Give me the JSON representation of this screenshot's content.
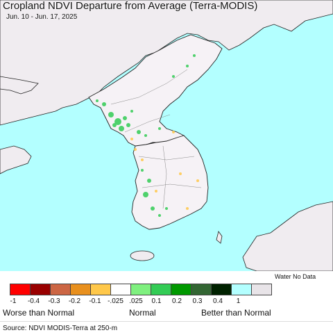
{
  "title": "Cropland NDVI Departure from Average (Terra-MODIS)",
  "subtitle": "Jun. 10 - Jun. 17, 2025",
  "legend": {
    "water_nodata_label": "Water No Data",
    "swatches": [
      {
        "color": "#ff0000",
        "name": "class--1"
      },
      {
        "color": "#990000",
        "name": "class--0.4"
      },
      {
        "color": "#cc6644",
        "name": "class--0.3"
      },
      {
        "color": "#e8901e",
        "name": "class--0.2"
      },
      {
        "color": "#ffc84a",
        "name": "class--0.1"
      },
      {
        "color": "#ffffff",
        "name": "class-normal"
      },
      {
        "color": "#7ff07f",
        "name": "class-0.025"
      },
      {
        "color": "#33cc55",
        "name": "class-0.1"
      },
      {
        "color": "#009900",
        "name": "class-0.2"
      },
      {
        "color": "#336633",
        "name": "class-0.3"
      },
      {
        "color": "#002200",
        "name": "class-0.4"
      },
      {
        "color": "#b3ffff",
        "name": "water"
      },
      {
        "color": "#e8e4e8",
        "name": "no-data"
      }
    ],
    "ticks": [
      "-1",
      "-0.4",
      "-0.3",
      "-0.2",
      "-0.1",
      "-.025",
      ".025",
      "0.1",
      "0.2",
      "0.3",
      "0.4",
      "1"
    ],
    "categories": {
      "worse": "Worse than Normal",
      "normal": "Normal",
      "better": "Better than Normal"
    }
  },
  "source": "Source: NDVI MODIS-Terra at 250-m",
  "colors": {
    "water": "#b3ffff",
    "land": "#f0ecf0",
    "border": "#222222"
  }
}
